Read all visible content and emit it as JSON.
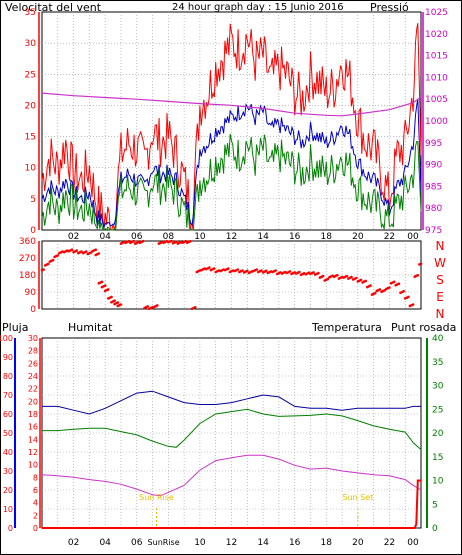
{
  "colors": {
    "wind_gust": "#ff0000",
    "wind_avg": "#0000c0",
    "wind_min": "#008000",
    "pressure": "#cc33cc",
    "direction": "#ff0000",
    "rain": "#ff0000",
    "humidity": "#0000a0",
    "temperature": "#008000",
    "dewpoint": "#cc33cc",
    "sun": "#e8c000",
    "axis_red": "#ff0000",
    "axis_blue": "#0000ff",
    "axis_green": "#008000",
    "axis_magenta": "#cc00cc"
  },
  "header": {
    "title": "24 hour graph day : 15 Junio 2016",
    "left_label": "Velocitat del vent",
    "right_label": "Pressió"
  },
  "panel3_labels": {
    "rain": "Pluja",
    "humidity": "Humitat",
    "temperature": "Temperatura",
    "dewpoint": "Punt rosada"
  },
  "x_ticks": [
    "02",
    "04",
    "06",
    "08",
    "10",
    "12",
    "14",
    "16",
    "18",
    "20",
    "22",
    "00"
  ],
  "sun": {
    "rise_label": "Sun Rise",
    "set_label": "Sun Set",
    "rise_hour": 7.25,
    "set_hour": 20.0,
    "rise_axis_label": "SunRise"
  },
  "chart_data": [
    {
      "type": "line",
      "name": "wind_pressure",
      "x_range": [
        0,
        24
      ],
      "y_left": {
        "ticks": [
          "35",
          "30",
          "25",
          "20",
          "15",
          "10",
          "5",
          "0"
        ],
        "ylim": [
          0,
          35
        ]
      },
      "y_right": {
        "ticks": [
          "1025",
          "1020",
          "1015",
          "1010",
          "1005",
          "1000",
          "995",
          "990",
          "985",
          "980",
          "975"
        ],
        "ylim": [
          975,
          1025
        ]
      },
      "series": [
        {
          "key": "gust",
          "x": [
            0,
            0.5,
            1,
            1.5,
            2,
            2.5,
            3,
            3.5,
            4,
            4.5,
            5,
            5.5,
            6,
            6.5,
            7,
            7.5,
            8,
            8.5,
            9,
            9.5,
            10,
            10.5,
            11,
            11.5,
            12,
            12.5,
            13,
            13.5,
            14,
            14.5,
            15,
            15.5,
            16,
            16.5,
            17,
            17.5,
            18,
            18.5,
            19,
            19.5,
            20,
            20.5,
            21,
            21.5,
            22,
            22.5,
            23,
            23.5,
            23.8,
            24
          ],
          "values": [
            8,
            12,
            10,
            14,
            9,
            8,
            10,
            4,
            2,
            1,
            12,
            14,
            13,
            11,
            16,
            14,
            15,
            12,
            8,
            3,
            20,
            22,
            26,
            28,
            30,
            29,
            31,
            27,
            28,
            24,
            26,
            25,
            22,
            21,
            25,
            24,
            22,
            23,
            27,
            24,
            18,
            14,
            13,
            9,
            5,
            12,
            14,
            22,
            33,
            12
          ]
        },
        {
          "key": "avg",
          "x": [
            0,
            0.5,
            1,
            1.5,
            2,
            2.5,
            3,
            3.5,
            4,
            4.5,
            5,
            5.5,
            6,
            6.5,
            7,
            7.5,
            8,
            8.5,
            9,
            9.5,
            10,
            10.5,
            11,
            11.5,
            12,
            12.5,
            13,
            13.5,
            14,
            14.5,
            15,
            15.5,
            16,
            16.5,
            17,
            17.5,
            18,
            18.5,
            19,
            19.5,
            20,
            20.5,
            21,
            21.5,
            22,
            22.5,
            23,
            23.5,
            23.8,
            24
          ],
          "values": [
            5,
            7,
            6,
            8,
            6,
            5,
            6,
            2,
            1,
            1,
            8,
            9,
            8,
            7,
            10,
            9,
            9,
            8,
            5,
            2,
            13,
            14,
            16,
            17,
            18,
            19,
            20,
            18,
            19,
            16,
            17,
            16,
            15,
            14,
            16,
            15,
            14,
            15,
            17,
            15,
            11,
            9,
            8,
            6,
            3,
            7,
            9,
            14,
            21,
            6
          ]
        },
        {
          "key": "min",
          "x": [
            0,
            0.5,
            1,
            1.5,
            2,
            2.5,
            3,
            3.5,
            4,
            4.5,
            5,
            5.5,
            6,
            6.5,
            7,
            7.5,
            8,
            8.5,
            9,
            9.5,
            10,
            10.5,
            11,
            11.5,
            12,
            12.5,
            13,
            13.5,
            14,
            14.5,
            15,
            15.5,
            16,
            16.5,
            17,
            17.5,
            18,
            18.5,
            19,
            19.5,
            20,
            20.5,
            21,
            21.5,
            22,
            22.5,
            23,
            23.5,
            23.8,
            24
          ],
          "values": [
            2,
            5,
            3,
            6,
            4,
            3,
            4,
            1,
            0,
            0,
            6,
            7,
            6,
            5,
            8,
            7,
            7,
            6,
            3,
            0,
            8,
            9,
            11,
            12,
            13,
            12,
            14,
            11,
            13,
            10,
            12,
            11,
            10,
            9,
            11,
            10,
            9,
            10,
            12,
            10,
            7,
            5,
            4,
            3,
            1,
            4,
            6,
            9,
            14,
            3
          ]
        },
        {
          "key": "pressure",
          "x": [
            0,
            2,
            4,
            6,
            8,
            10,
            12,
            14,
            16,
            18,
            19,
            20,
            22,
            23.5,
            24
          ],
          "values": [
            1006.4,
            1005.8,
            1005.4,
            1005.0,
            1004.5,
            1004.0,
            1003.6,
            1002.9,
            1001.8,
            1001.3,
            1001.2,
            1001.6,
            1002.6,
            1004.2,
            1005.5
          ]
        }
      ]
    },
    {
      "type": "scatter",
      "name": "wind_direction",
      "x_range": [
        0,
        24
      ],
      "y_left": {
        "ticks": [
          "360",
          "270",
          "180",
          "90",
          "0"
        ],
        "ylim": [
          0,
          360
        ]
      },
      "y_right": {
        "ticks": [
          "N",
          "W",
          "S",
          "E",
          "N"
        ]
      },
      "series": [
        {
          "key": "direction",
          "x": [
            0,
            0.3,
            0.6,
            0.9,
            1.2,
            1.5,
            1.8,
            2.1,
            2.4,
            2.7,
            3,
            3.3,
            3.5,
            3.7,
            3.9,
            4.1,
            4.3,
            4.5,
            4.7,
            4.9,
            5.1,
            5.4,
            5.7,
            6,
            6.3,
            6.6,
            6.9,
            7.2,
            7.5,
            7.8,
            8.1,
            8.4,
            8.7,
            9,
            9.3,
            9.6,
            9.9,
            10.2,
            10.5,
            10.8,
            11.1,
            11.4,
            11.7,
            12,
            12.3,
            12.6,
            12.9,
            13.2,
            13.5,
            13.8,
            14.1,
            14.4,
            14.7,
            15,
            15.3,
            15.6,
            15.9,
            16.2,
            16.5,
            16.8,
            17.1,
            17.4,
            17.7,
            18,
            18.3,
            18.6,
            18.9,
            19.2,
            19.5,
            19.8,
            20.1,
            20.4,
            20.7,
            21,
            21.3,
            21.6,
            21.9,
            22.2,
            22.5,
            22.8,
            23.1,
            23.4,
            23.7,
            24
          ],
          "values": [
            205,
            235,
            255,
            280,
            300,
            305,
            310,
            305,
            300,
            300,
            295,
            310,
            290,
            140,
            120,
            100,
            60,
            40,
            30,
            20,
            350,
            355,
            355,
            350,
            355,
            10,
            5,
            15,
            350,
            355,
            358,
            352,
            350,
            355,
            355,
            5,
            200,
            210,
            215,
            210,
            200,
            205,
            210,
            200,
            205,
            200,
            198,
            195,
            205,
            200,
            198,
            195,
            200,
            190,
            192,
            195,
            190,
            192,
            185,
            188,
            190,
            186,
            170,
            155,
            172,
            175,
            165,
            170,
            165,
            160,
            150,
            145,
            120,
            80,
            100,
            95,
            110,
            140,
            130,
            90,
            60,
            20,
            175,
            240
          ]
        }
      ]
    },
    {
      "type": "line",
      "name": "temp_hum_rain",
      "x_range": [
        0,
        24
      ],
      "y_left_rain": {
        "ticks": [
          "100",
          "90",
          "80",
          "70",
          "60",
          "50",
          "40",
          "30",
          "20",
          "10",
          "0"
        ],
        "ylim": [
          0,
          100
        ]
      },
      "y_left_hum": {
        "ticks": [
          "30",
          "28",
          "26",
          "24",
          "22",
          "20",
          "18",
          "16",
          "14",
          "12",
          "10",
          "8",
          "6",
          "4",
          "2",
          "0"
        ],
        "ylim": [
          0,
          30
        ]
      },
      "y_right": {
        "ticks": [
          "40",
          "35",
          "30",
          "25",
          "20",
          "15",
          "10",
          "5",
          "0"
        ],
        "ylim": [
          0,
          40
        ]
      },
      "series": [
        {
          "key": "humidity",
          "x": [
            0,
            1,
            2,
            3,
            4,
            5,
            6,
            7,
            8,
            9,
            10,
            11,
            12,
            13,
            14,
            15,
            16,
            17,
            18,
            19,
            20,
            21,
            22,
            23,
            23.5,
            24
          ],
          "values": [
            64,
            64,
            62,
            60,
            63,
            67,
            71,
            72,
            69,
            66,
            65,
            65,
            66,
            68,
            70,
            69,
            64,
            63,
            63,
            62,
            63,
            63,
            63,
            63,
            64,
            64
          ]
        },
        {
          "key": "temperature",
          "x": [
            0,
            1,
            2,
            3,
            4,
            5,
            6,
            7,
            8,
            8.5,
            9,
            10,
            11,
            12,
            13,
            14,
            15,
            16,
            17,
            18,
            19,
            20,
            21,
            22,
            23,
            23.5,
            24
          ],
          "values": [
            20.5,
            20.5,
            20.8,
            21.0,
            21.0,
            20.3,
            19.6,
            18.3,
            17.2,
            17.0,
            18.5,
            22.0,
            24.0,
            24.5,
            25.0,
            24.0,
            23.5,
            23.6,
            23.7,
            24.0,
            23.6,
            22.6,
            21.5,
            20.8,
            20.2,
            18.0,
            16.5
          ]
        },
        {
          "key": "dewpoint",
          "x": [
            0,
            1,
            2,
            3,
            4,
            5,
            6,
            7,
            7.5,
            8,
            9,
            10,
            11,
            12,
            13,
            14,
            15,
            16,
            17,
            18,
            19,
            20,
            21,
            22,
            23,
            23.5,
            24
          ],
          "values": [
            11.2,
            11.0,
            10.7,
            10.2,
            9.8,
            9.2,
            8.2,
            7.0,
            6.8,
            7.5,
            9.0,
            12.2,
            14.2,
            14.8,
            15.3,
            15.3,
            14.5,
            13.2,
            12.4,
            12.6,
            12.0,
            11.6,
            11.2,
            11.0,
            10.2,
            9.0,
            8.0
          ]
        },
        {
          "key": "rain",
          "x": [
            0,
            23.6,
            23.7,
            23.8,
            24
          ],
          "values": [
            0,
            0,
            2,
            25,
            25
          ]
        }
      ]
    }
  ]
}
